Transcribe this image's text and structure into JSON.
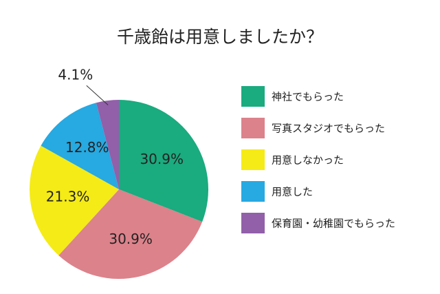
{
  "chart_data": {
    "type": "pie",
    "title": "千歳飴は用意しましたか？",
    "slices": [
      {
        "label": "神社でもらった",
        "value": 30.9,
        "value_label": "30.9%",
        "color": "#1aab7e"
      },
      {
        "label": "写真スタジオでもらった",
        "value": 30.9,
        "value_label": "30.9%",
        "color": "#dc828b"
      },
      {
        "label": "用意しなかった",
        "value": 21.3,
        "value_label": "21.3%",
        "color": "#f5eb16"
      },
      {
        "label": "用意した",
        "value": 12.8,
        "value_label": "12.8%",
        "color": "#27a9e1"
      },
      {
        "label": "保育園・幼稚園でもらった",
        "value": 4.1,
        "value_label": "4.1%",
        "color": "#9160a9"
      }
    ],
    "start_angle_deg": 0,
    "direction": "clockwise",
    "legend_position": "right"
  }
}
